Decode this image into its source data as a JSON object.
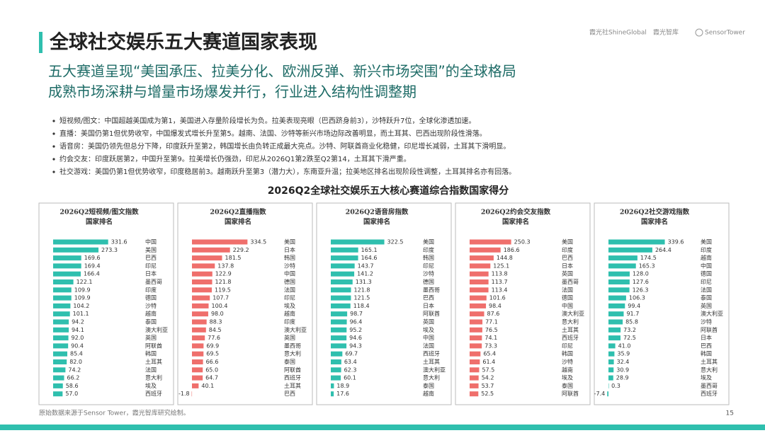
{
  "header": {
    "title": "全球社交娱乐五大赛道国家表现",
    "logos": [
      "霞光社ShineGlobal",
      "霞光智库",
      "SensorTower"
    ],
    "subtitle_lines": [
      "五大赛道呈现“美国承压、拉美分化、欧洲反弹、新兴市场突围”的全球格局",
      "成熟市场深耕与增量市场爆发并行，行业进入结构性调整期"
    ]
  },
  "bullets": [
    "短视频/图文：中国超越美国成为第1，美国进入存量阶段增长为负。拉美表现亮眼（巴西跻身前3），沙特跃升7位，全球化渗透加速。",
    "直播：美国仍第1但优势收窄，中国爆发式增长升至第5。越南、法国、沙特等新兴市场边际改善明显，而土耳其、巴西出现阶段性滑落。",
    "语音房：美国仍领先但总分下降，印度跃升至第2，韩国增长由负转正成最大亮点。沙特、阿联酋商业化稳健，印尼增长减弱，土耳其下滑明显。",
    "约会交友：印度跃居第2，中国升至第9。拉美增长仍强劲，印尼从2026Q1第2跌至Q2第14，土耳其下滑严重。",
    "社交游戏：美国仍第1但优势收窄，印度稳居前3。越南跃升至第3（潜力大），东南亚升温；拉美地区排名出现阶段性调整，土耳其排名亦有回落。"
  ],
  "charts_title": "2026Q2全球社交娱乐五大核心赛道综合指数国家得分",
  "footer": {
    "source": "原始数据来源于Sensor Tower，霞光智库研究绘制。",
    "page": "15"
  },
  "chart_data": [
    {
      "type": "bar",
      "orientation": "horizontal",
      "title": "2026Q2短视频/图文指数",
      "subtitle": "国家排名",
      "color": "#2fbfae",
      "xlim": [
        0,
        350
      ],
      "categories": [
        "中国",
        "美国",
        "巴西",
        "印尼",
        "日本",
        "墨西哥",
        "印度",
        "德国",
        "沙特",
        "越南",
        "泰国",
        "澳大利亚",
        "英国",
        "阿联酋",
        "韩国",
        "土耳其",
        "法国",
        "意大利",
        "埃及",
        "西班牙"
      ],
      "values": [
        331.6,
        273.3,
        169.6,
        169.4,
        166.4,
        122.1,
        109.9,
        109.9,
        104.2,
        101.1,
        94.2,
        94.1,
        92.0,
        90.4,
        85.4,
        82.0,
        74.2,
        66.2,
        58.6,
        57.0
      ],
      "value_labels": [
        "331.6",
        "273.3",
        "169.6",
        "169.4",
        "166.4",
        "122.1",
        "109.9",
        "109.9",
        "104.2",
        "101.1",
        "94.2",
        "94.1",
        "92.0",
        "90.4",
        "85.4",
        "82.0",
        "74.2",
        "66.2",
        "58.6",
        "57.0"
      ]
    },
    {
      "type": "bar",
      "orientation": "horizontal",
      "title": "2026Q2直播指数",
      "subtitle": "国家排名",
      "color": "#ef6f6c",
      "xlim": [
        0,
        350
      ],
      "categories": [
        "美国",
        "日本",
        "韩国",
        "沙特",
        "中国",
        "德国",
        "法国",
        "印尼",
        "埃及",
        "越南",
        "印度",
        "澳大利亚",
        "英国",
        "墨西哥",
        "意大利",
        "泰国",
        "阿联酋",
        "西班牙",
        "土耳其",
        "巴西"
      ],
      "values": [
        334.5,
        229.2,
        181.5,
        137.8,
        122.9,
        121.8,
        119.5,
        107.7,
        100.4,
        98.0,
        88.3,
        84.5,
        77.6,
        69.9,
        69.5,
        66.6,
        65.0,
        64.7,
        40.1,
        -1.8
      ],
      "value_labels": [
        "334.5",
        "229.2",
        "181.5",
        "137.8",
        "122.9",
        "121.8",
        "119.5",
        "107.7",
        "100.4",
        "98.0",
        "88.3",
        "84.5",
        "77.6",
        "69.9",
        "69.5",
        "66.6",
        "65.0",
        "64.7",
        "40.1",
        "-1.8"
      ]
    },
    {
      "type": "bar",
      "orientation": "horizontal",
      "title": "2026Q2语音房指数",
      "subtitle": "国家排名",
      "color": "#2fbfae",
      "xlim": [
        0,
        350
      ],
      "categories": [
        "美国",
        "印度",
        "韩国",
        "印尼",
        "沙特",
        "德国",
        "墨西哥",
        "巴西",
        "日本",
        "阿联酋",
        "英国",
        "埃及",
        "中国",
        "法国",
        "西班牙",
        "土耳其",
        "澳大利亚",
        "意大利",
        "泰国",
        "越南"
      ],
      "values": [
        322.5,
        165.1,
        164.6,
        143.7,
        141.2,
        131.3,
        121.8,
        121.5,
        118.4,
        98.7,
        96.4,
        95.2,
        94.6,
        94.3,
        69.7,
        63.4,
        62.3,
        60.1,
        18.9,
        17.6
      ],
      "value_labels": [
        "322.5",
        "165.1",
        "164.6",
        "143.7",
        "141.2",
        "131.3",
        "121.8",
        "121.5",
        "118.4",
        "98.7",
        "96.4",
        "95.2",
        "94.6",
        "94.3",
        "69.7",
        "63.4",
        "62.3",
        "60.1",
        "18.9",
        "17.6"
      ]
    },
    {
      "type": "bar",
      "orientation": "horizontal",
      "title": "2026Q2约会交友指数",
      "subtitle": "国家排名",
      "color": "#ef6f6c",
      "xlim": [
        0,
        350
      ],
      "categories": [
        "美国",
        "印度",
        "巴西",
        "日本",
        "英国",
        "墨西哥",
        "法国",
        "德国",
        "中国",
        "澳大利亚",
        "意大利",
        "土耳其",
        "西班牙",
        "印尼",
        "韩国",
        "沙特",
        "越南",
        "埃及",
        "泰国",
        "阿联酋"
      ],
      "values": [
        250.3,
        186.6,
        144.8,
        125.1,
        113.8,
        113.7,
        113.4,
        101.6,
        98.4,
        87.6,
        77.1,
        76.5,
        74.1,
        73.3,
        65.4,
        61.4,
        57.5,
        54.2,
        53.7,
        52.5
      ],
      "value_labels": [
        "250.3",
        "186.6",
        "144.8",
        "125.1",
        "113.8",
        "113.7",
        "113.4",
        "101.6",
        "98.4",
        "87.6",
        "77.1",
        "76.5",
        "74.1",
        "73.3",
        "65.4",
        "61.4",
        "57.5",
        "54.2",
        "53.7",
        "52.5"
      ]
    },
    {
      "type": "bar",
      "orientation": "horizontal",
      "title": "2026Q2社交游戏指数",
      "subtitle": "国家排名",
      "color": "#2fbfae",
      "xlim": [
        0,
        350
      ],
      "categories": [
        "美国",
        "印度",
        "越南",
        "中国",
        "德国",
        "印尼",
        "法国",
        "泰国",
        "英国",
        "澳大利亚",
        "沙特",
        "阿联酋",
        "日本",
        "巴西",
        "韩国",
        "土耳其",
        "意大利",
        "埃及",
        "墨西哥",
        "西班牙"
      ],
      "values": [
        339.6,
        264.4,
        174.5,
        165.3,
        128.0,
        127.6,
        126.3,
        106.3,
        99.4,
        91.7,
        85.8,
        73.2,
        72.5,
        41.0,
        35.9,
        32.4,
        30.9,
        28.9,
        0.3,
        -7.4
      ],
      "value_labels": [
        "339.6",
        "264.4",
        "174.5",
        "165.3",
        "128.0",
        "127.6",
        "126.3",
        "106.3",
        "99.4",
        "91.7",
        "85.8",
        "73.2",
        "72.5",
        "41.0",
        "35.9",
        "32.4",
        "30.9",
        "28.9",
        "0.3",
        "-7.4"
      ]
    }
  ]
}
